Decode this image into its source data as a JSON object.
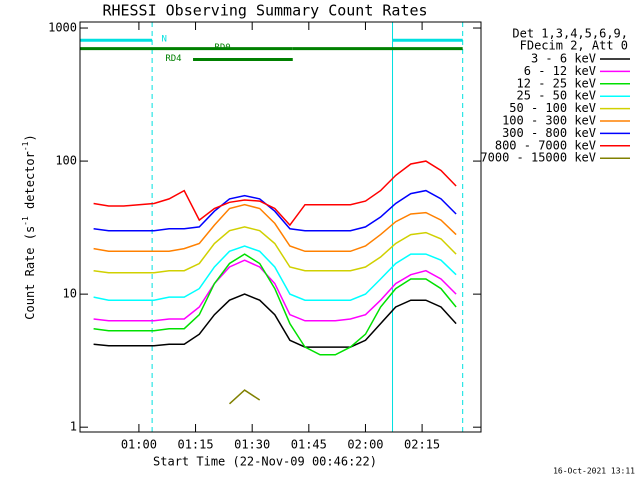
{
  "chart_data": {
    "type": "line",
    "title": "RHESSI Observing Summary Count Rates",
    "x_label": "Start Time (22-Nov-09 00:46:22)",
    "y_label": [
      "Count Rate (s",
      "-1",
      " detector",
      "-1",
      ")"
    ],
    "log_y": true,
    "xlim": [
      "00:44:24",
      "02:30:36"
    ],
    "xticks": [
      "01:00",
      "01:15",
      "01:30",
      "01:45",
      "02:00",
      "02:15"
    ],
    "ylim": [
      0.92,
      1110
    ],
    "yticks": [
      1,
      10,
      100,
      1000
    ],
    "legend_header": [
      "Det 1,3,4,5,6,9,",
      "FDecim 2, Att 0"
    ],
    "timestamp": "16-Oct-2021 13:11",
    "vlines_color": "#00e0e0",
    "vlines": [
      {
        "x": "00:44:24",
        "dashed": false
      },
      {
        "x": "01:03:30",
        "dashed": true
      },
      {
        "x": "02:07:10",
        "dashed": false
      },
      {
        "x": "02:25:45",
        "dashed": true
      }
    ],
    "state_bars": [
      {
        "label": "N",
        "color": "#00e0e0",
        "level": 810,
        "label_at": "01:06:00",
        "segments": [
          [
            "00:44:24",
            "01:03:30"
          ],
          [
            "02:07:10",
            "02:25:45"
          ]
        ]
      },
      {
        "label": "RD0",
        "color": "#008000",
        "level": 700,
        "label_at": "01:20:00",
        "segments": [
          [
            "00:44:24",
            "01:40:45"
          ],
          [
            "01:40:45",
            "02:25:45"
          ]
        ]
      },
      {
        "label": "RD4",
        "color": "#008000",
        "level": 580,
        "label_at": "01:07:00",
        "segments": [
          [
            "01:14:20",
            "01:40:45"
          ]
        ]
      }
    ],
    "x": [
      "00:48",
      "00:52",
      "00:56",
      "01:00",
      "01:04",
      "01:08",
      "01:12",
      "01:16",
      "01:20",
      "01:24",
      "01:28",
      "01:32",
      "01:36",
      "01:40",
      "01:44",
      "01:48",
      "01:52",
      "01:56",
      "02:00",
      "02:04",
      "02:08",
      "02:12",
      "02:16",
      "02:20",
      "02:24"
    ],
    "series": [
      {
        "name": "3 - 6 keV",
        "color": "#000000",
        "values": [
          4.2,
          4.1,
          4.1,
          4.1,
          4.1,
          4.2,
          4.2,
          5,
          7,
          9,
          10,
          9,
          7,
          4.5,
          4,
          4,
          4,
          4,
          4.5,
          6,
          8,
          9,
          9,
          8,
          6
        ]
      },
      {
        "name": "6 - 12 keV",
        "color": "#ff00ff",
        "values": [
          6.5,
          6.3,
          6.3,
          6.3,
          6.3,
          6.5,
          6.5,
          8,
          12,
          16,
          18,
          16,
          12,
          7,
          6.3,
          6.3,
          6.3,
          6.5,
          7,
          9,
          12,
          14,
          15,
          13,
          10
        ]
      },
      {
        "name": "12 - 25 keV",
        "color": "#00e000",
        "values": [
          5.5,
          5.3,
          5.3,
          5.3,
          5.3,
          5.5,
          5.5,
          7,
          12,
          17,
          20,
          17,
          11,
          6,
          4,
          3.5,
          3.5,
          4,
          5,
          8,
          11,
          13,
          13,
          11,
          8
        ]
      },
      {
        "name": "25 - 50 keV",
        "color": "#00ffff",
        "values": [
          9.5,
          9,
          9,
          9,
          9,
          9.5,
          9.5,
          11,
          16,
          21,
          23,
          21,
          16,
          10,
          9,
          9,
          9,
          9,
          10,
          13,
          17,
          20,
          20,
          18,
          14
        ]
      },
      {
        "name": "50 - 100 keV",
        "color": "#d0d000",
        "values": [
          15,
          14.5,
          14.5,
          14.5,
          14.5,
          15,
          15,
          17,
          24,
          30,
          32,
          30,
          24,
          16,
          15,
          15,
          15,
          15,
          16,
          19,
          24,
          28,
          29,
          26,
          20
        ]
      },
      {
        "name": "100 - 300 keV",
        "color": "#ff8000",
        "values": [
          22,
          21,
          21,
          21,
          21,
          21,
          22,
          24,
          33,
          44,
          47,
          44,
          34,
          23,
          21,
          21,
          21,
          21,
          23,
          28,
          35,
          40,
          41,
          36,
          28
        ]
      },
      {
        "name": "300 - 800 keV",
        "color": "#0000ff",
        "values": [
          31,
          30,
          30,
          30,
          30,
          31,
          31,
          32,
          42,
          52,
          55,
          52,
          42,
          31,
          30,
          30,
          30,
          30,
          32,
          38,
          48,
          57,
          60,
          52,
          40
        ]
      },
      {
        "name": "800 - 7000 keV",
        "color": "#ff0000",
        "values": [
          48,
          46,
          46,
          47,
          48,
          52,
          60,
          36,
          44,
          49,
          51,
          50,
          44,
          33,
          47,
          47,
          47,
          47,
          50,
          60,
          78,
          95,
          100,
          85,
          65
        ]
      },
      {
        "name": "7000 - 15000 keV",
        "color": "#808000",
        "values": [
          null,
          null,
          null,
          null,
          null,
          null,
          null,
          null,
          null,
          1.5,
          1.9,
          1.6,
          null,
          null,
          null,
          null,
          null,
          null,
          null,
          null,
          null,
          null,
          null,
          null,
          null
        ]
      }
    ]
  }
}
